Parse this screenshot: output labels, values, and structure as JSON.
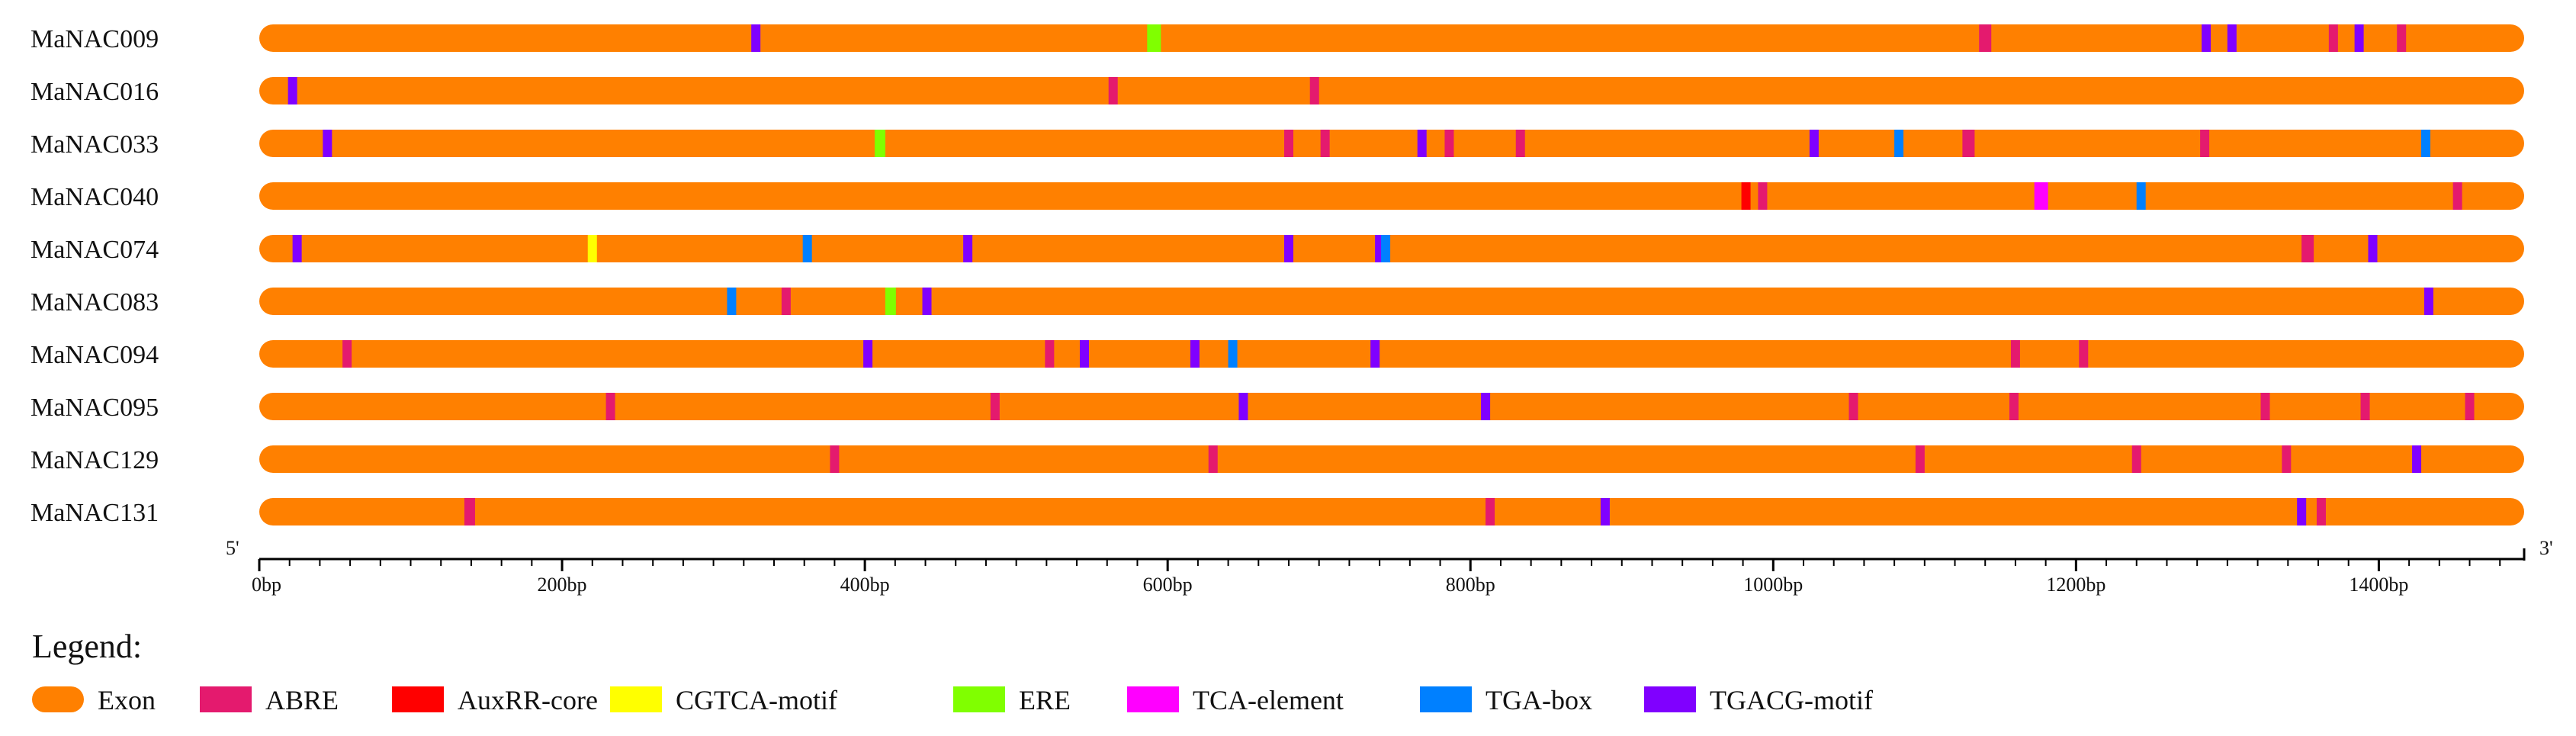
{
  "chart_data": {
    "type": "gene-structure",
    "x_unit": "bp",
    "xlim": [
      0,
      1496
    ],
    "ticks": [
      0,
      200,
      400,
      600,
      800,
      1000,
      1200,
      1400
    ],
    "tick_labels": [
      "0bp",
      "200bp",
      "400bp",
      "600bp",
      "800bp",
      "1000bp",
      "1200bp",
      "1400bp"
    ],
    "start_label": "5'",
    "end_label": "3'",
    "legend_title": "Legend:",
    "legend": [
      {
        "key": "Exon",
        "label": "Exon",
        "color": "#FF8000"
      },
      {
        "key": "ABRE",
        "label": "ABRE",
        "color": "#E41A6E"
      },
      {
        "key": "AuxRR-core",
        "label": "AuxRR-core",
        "color": "#FF0000"
      },
      {
        "key": "CGTCA-motif",
        "label": "CGTCA-motif",
        "color": "#FFFF00"
      },
      {
        "key": "ERE",
        "label": "ERE",
        "color": "#80FF00"
      },
      {
        "key": "TCA-element",
        "label": "TCA-element",
        "color": "#FF00FF"
      },
      {
        "key": "TGA-box",
        "label": "TGA-box",
        "color": "#0080FF"
      },
      {
        "key": "TGACG-motif",
        "label": "TGACG-motif",
        "color": "#8000FF"
      }
    ],
    "genes": [
      {
        "name": "MaNAC009",
        "length": 1496,
        "elements": [
          {
            "type": "TGACG-motif",
            "pos": 328
          },
          {
            "type": "ERE",
            "pos": 591,
            "len": 9
          },
          {
            "type": "ABRE",
            "pos": 1140,
            "len": 8
          },
          {
            "type": "TGACG-motif",
            "pos": 1286
          },
          {
            "type": "TGACG-motif",
            "pos": 1303
          },
          {
            "type": "ABRE",
            "pos": 1370
          },
          {
            "type": "TGACG-motif",
            "pos": 1387
          },
          {
            "type": "ABRE",
            "pos": 1415
          }
        ]
      },
      {
        "name": "MaNAC016",
        "length": 1496,
        "elements": [
          {
            "type": "TGACG-motif",
            "pos": 22
          },
          {
            "type": "ABRE",
            "pos": 564
          },
          {
            "type": "ABRE",
            "pos": 697
          }
        ]
      },
      {
        "name": "MaNAC033",
        "length": 1496,
        "elements": [
          {
            "type": "TGACG-motif",
            "pos": 45
          },
          {
            "type": "ERE",
            "pos": 410,
            "len": 7
          },
          {
            "type": "ABRE",
            "pos": 680
          },
          {
            "type": "ABRE",
            "pos": 704
          },
          {
            "type": "TGACG-motif",
            "pos": 768
          },
          {
            "type": "ABRE",
            "pos": 786
          },
          {
            "type": "ABRE",
            "pos": 833
          },
          {
            "type": "TGACG-motif",
            "pos": 1027
          },
          {
            "type": "TGA-box",
            "pos": 1083
          },
          {
            "type": "ABRE",
            "pos": 1129,
            "len": 8
          },
          {
            "type": "ABRE",
            "pos": 1285
          },
          {
            "type": "TGA-box",
            "pos": 1431
          }
        ]
      },
      {
        "name": "MaNAC040",
        "length": 1496,
        "elements": [
          {
            "type": "AuxRR-core",
            "pos": 982,
            "len": 6
          },
          {
            "type": "ABRE",
            "pos": 993
          },
          {
            "type": "TCA-element",
            "pos": 1177,
            "len": 9
          },
          {
            "type": "TGA-box",
            "pos": 1243
          },
          {
            "type": "ABRE",
            "pos": 1452
          }
        ]
      },
      {
        "name": "MaNAC074",
        "length": 1496,
        "elements": [
          {
            "type": "TGACG-motif",
            "pos": 25
          },
          {
            "type": "CGTCA-motif",
            "pos": 220
          },
          {
            "type": "TGA-box",
            "pos": 362
          },
          {
            "type": "TGACG-motif",
            "pos": 468
          },
          {
            "type": "TGACG-motif",
            "pos": 680
          },
          {
            "type": "TGACG-motif",
            "pos": 740
          },
          {
            "type": "TGA-box",
            "pos": 744
          },
          {
            "type": "ABRE",
            "pos": 1353,
            "len": 8
          },
          {
            "type": "TGACG-motif",
            "pos": 1396
          }
        ]
      },
      {
        "name": "MaNAC083",
        "length": 1496,
        "elements": [
          {
            "type": "TGA-box",
            "pos": 312
          },
          {
            "type": "ABRE",
            "pos": 348
          },
          {
            "type": "ERE",
            "pos": 417,
            "len": 7
          },
          {
            "type": "TGACG-motif",
            "pos": 441
          },
          {
            "type": "TGACG-motif",
            "pos": 1433
          }
        ]
      },
      {
        "name": "MaNAC094",
        "length": 1496,
        "elements": [
          {
            "type": "ABRE",
            "pos": 58
          },
          {
            "type": "TGACG-motif",
            "pos": 402
          },
          {
            "type": "ABRE",
            "pos": 522
          },
          {
            "type": "TGACG-motif",
            "pos": 545
          },
          {
            "type": "TGACG-motif",
            "pos": 618
          },
          {
            "type": "TGA-box",
            "pos": 643
          },
          {
            "type": "TGACG-motif",
            "pos": 737
          },
          {
            "type": "ABRE",
            "pos": 1160
          },
          {
            "type": "ABRE",
            "pos": 1205
          }
        ]
      },
      {
        "name": "MaNAC095",
        "length": 1496,
        "elements": [
          {
            "type": "ABRE",
            "pos": 232
          },
          {
            "type": "ABRE",
            "pos": 486
          },
          {
            "type": "TGACG-motif",
            "pos": 650
          },
          {
            "type": "TGACG-motif",
            "pos": 810
          },
          {
            "type": "ABRE",
            "pos": 1053
          },
          {
            "type": "ABRE",
            "pos": 1159
          },
          {
            "type": "ABRE",
            "pos": 1325
          },
          {
            "type": "ABRE",
            "pos": 1391
          },
          {
            "type": "ABRE",
            "pos": 1460
          }
        ]
      },
      {
        "name": "MaNAC129",
        "length": 1496,
        "elements": [
          {
            "type": "ABRE",
            "pos": 380
          },
          {
            "type": "ABRE",
            "pos": 630
          },
          {
            "type": "ABRE",
            "pos": 1097
          },
          {
            "type": "ABRE",
            "pos": 1240
          },
          {
            "type": "ABRE",
            "pos": 1339
          },
          {
            "type": "TGACG-motif",
            "pos": 1425
          }
        ]
      },
      {
        "name": "MaNAC131",
        "length": 1496,
        "elements": [
          {
            "type": "ABRE",
            "pos": 139,
            "len": 7
          },
          {
            "type": "ABRE",
            "pos": 813
          },
          {
            "type": "TGACG-motif",
            "pos": 889
          },
          {
            "type": "TGACG-motif",
            "pos": 1349
          },
          {
            "type": "ABRE",
            "pos": 1362
          }
        ]
      }
    ]
  }
}
